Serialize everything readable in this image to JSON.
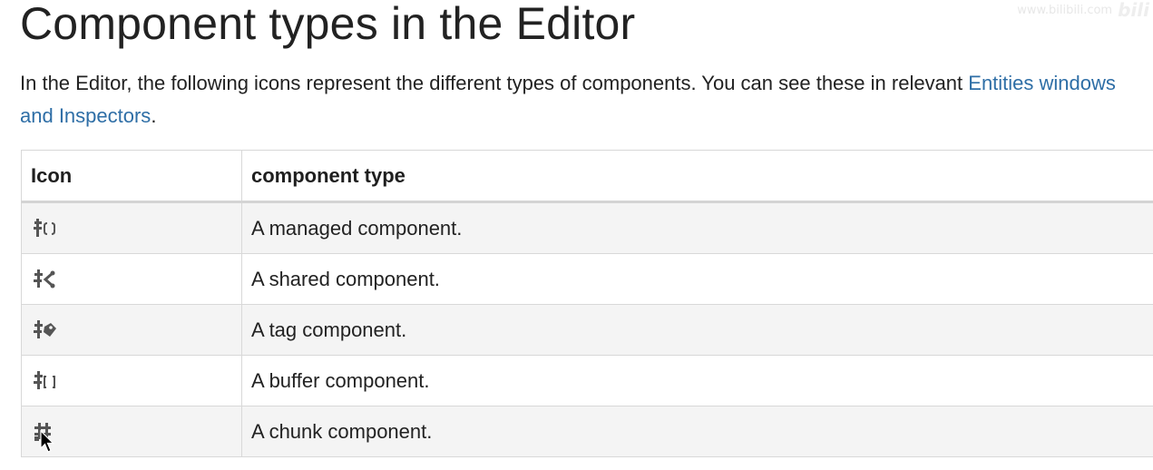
{
  "page": {
    "title": "Component types in the Editor",
    "intro_text": "In the Editor, the following icons represent the different types of components. You can see these in relevant ",
    "intro_link": "Entities windows and Inspectors",
    "intro_end": "."
  },
  "watermark": {
    "text": "www.bilibili.com",
    "logo": "bili"
  },
  "table": {
    "headers": [
      "Icon",
      "component type"
    ],
    "rows": [
      {
        "icon": "managed-component-icon",
        "type": "A managed component."
      },
      {
        "icon": "shared-component-icon",
        "type": "A shared component."
      },
      {
        "icon": "tag-component-icon",
        "type": "A tag component."
      },
      {
        "icon": "buffer-component-icon",
        "type": "A buffer component."
      },
      {
        "icon": "chunk-component-icon",
        "type": "A chunk component."
      }
    ]
  },
  "colors": {
    "link": "#2e6ea6",
    "stripe": "#f4f4f4",
    "border": "#d8d8d8",
    "icon": "#555555"
  }
}
